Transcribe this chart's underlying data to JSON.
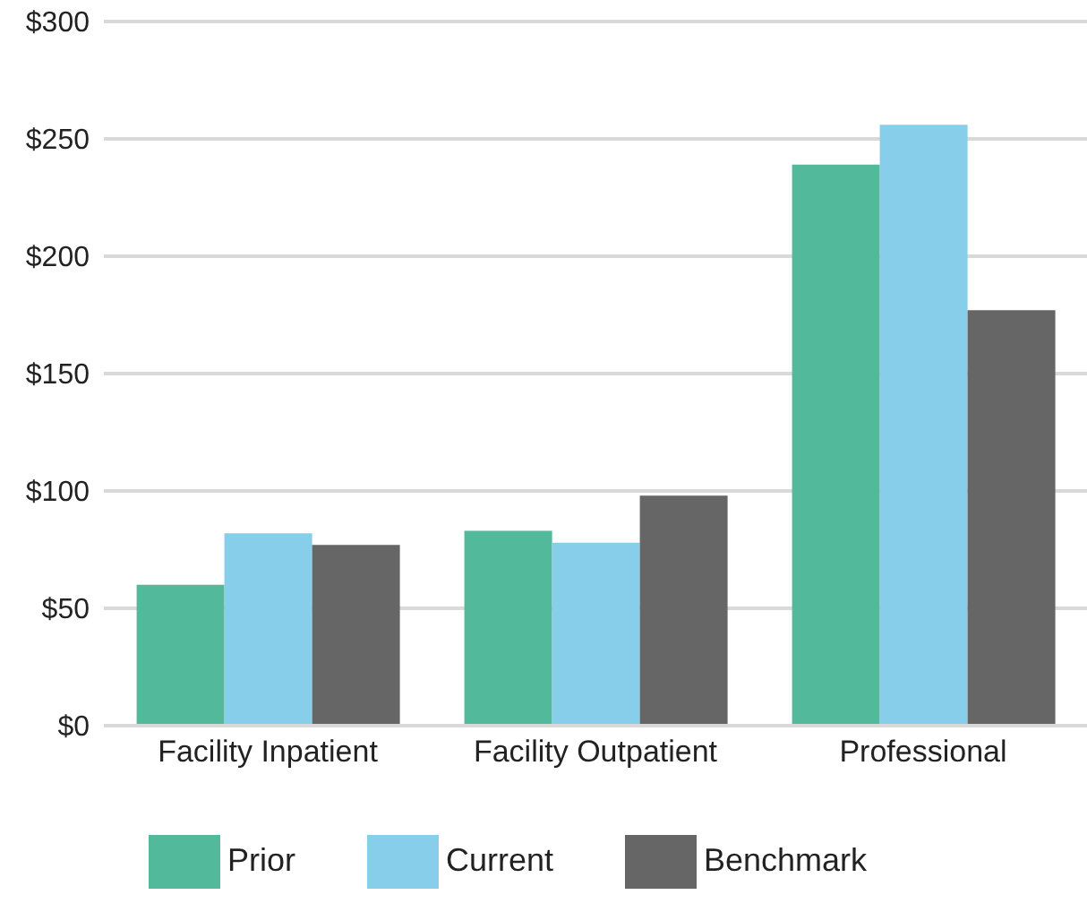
{
  "chart_data": {
    "type": "bar",
    "categories": [
      "Facility Inpatient",
      "Facility Outpatient",
      "Professional"
    ],
    "series": [
      {
        "name": "Prior",
        "color": "#52b99a",
        "values": [
          60,
          83,
          239
        ]
      },
      {
        "name": "Current",
        "color": "#87ceeb",
        "values": [
          82,
          78,
          256
        ]
      },
      {
        "name": "Benchmark",
        "color": "#666666",
        "values": [
          77,
          98,
          177
        ]
      }
    ],
    "ylim": [
      0,
      300
    ],
    "yticks": [
      {
        "value": 0,
        "label": "$0"
      },
      {
        "value": 50,
        "label": "$50"
      },
      {
        "value": 100,
        "label": "$100"
      },
      {
        "value": 150,
        "label": "$150"
      },
      {
        "value": 200,
        "label": "$200"
      },
      {
        "value": 250,
        "label": "$250"
      },
      {
        "value": 300,
        "label": "$300"
      }
    ],
    "grid": "y",
    "legend": "bottom"
  }
}
